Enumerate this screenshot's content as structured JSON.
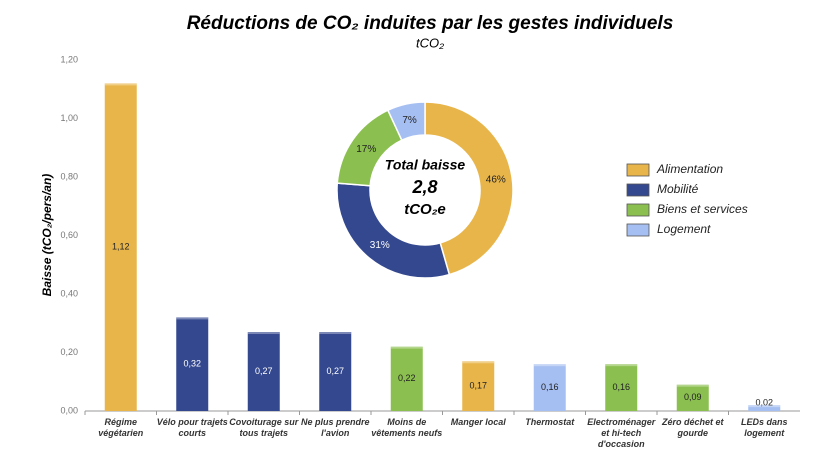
{
  "chart_data": [
    {
      "type": "bar",
      "title": "Réductions de CO₂ induites par les gestes individuels",
      "subtitle": "tCO₂",
      "y_label": "Baisse (tCO₂/pers/an)",
      "categories": [
        "Régime végétarien",
        "Vélo pour trajets courts",
        "Covoiturage sur tous trajets",
        "Ne plus prendre l'avion",
        "Moins de vêtements neufs",
        "Manger local",
        "Thermostat",
        "Electroménager et hi-tech d'occasion",
        "Zéro déchet et gourde",
        "LEDs dans logement"
      ],
      "values": [
        1.12,
        0.32,
        0.27,
        0.27,
        0.22,
        0.17,
        0.16,
        0.16,
        0.09,
        0.02
      ],
      "value_labels": [
        "1,12",
        "0,32",
        "0,27",
        "0,27",
        "0,22",
        "0,17",
        "0,16",
        "0,16",
        "0,09",
        "0,02"
      ],
      "colors": [
        "#e8b54a",
        "#34488f",
        "#34488f",
        "#34488f",
        "#8bbf4f",
        "#e8b54a",
        "#a6bff2",
        "#8bbf4f",
        "#8bbf4f",
        "#a6bff2"
      ],
      "ylim": [
        0,
        1.2
      ],
      "yticks": [
        {
          "value": 0,
          "label": "0,00"
        },
        {
          "value": 0.2,
          "label": "0,20"
        },
        {
          "value": 0.4,
          "label": "0,40"
        },
        {
          "value": 0.6,
          "label": "0,60"
        },
        {
          "value": 0.8,
          "label": "0,80"
        },
        {
          "value": 1,
          "label": "1,00"
        },
        {
          "value": 1.2,
          "label": "1,20"
        }
      ],
      "grid": false
    },
    {
      "type": "pie",
      "categories": [
        "Alimentation",
        "Mobilité",
        "Biens et services",
        "Logement"
      ],
      "values": [
        46,
        31,
        17,
        7
      ],
      "value_labels": [
        "46%",
        "31%",
        "17%",
        "7%"
      ],
      "colors": [
        "#e8b54a",
        "#34488f",
        "#8bbf4f",
        "#a6bff2"
      ],
      "center_texts": [
        "Total baisse",
        "2,8",
        "tCO₂e"
      ],
      "legend": "right"
    }
  ]
}
